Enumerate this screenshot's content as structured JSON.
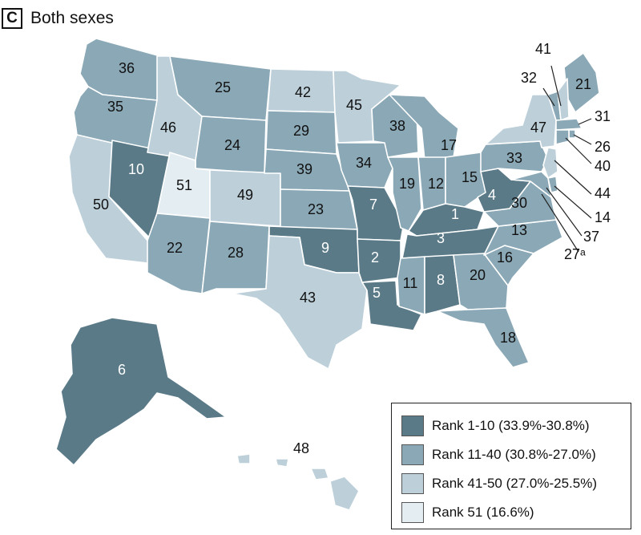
{
  "header": {
    "panel_letter": "C",
    "title": "Both sexes"
  },
  "colors": {
    "tier1": "#5a7a88",
    "tier2": "#8aa8b6",
    "tier3": "#bdd0da",
    "tier4": "#e4edf2"
  },
  "legend": [
    {
      "tier": "tier1",
      "label": "Rank 1-10 (33.9%-30.8%)"
    },
    {
      "tier": "tier2",
      "label": "Rank 11-40 (30.8%-27.0%)"
    },
    {
      "tier": "tier3",
      "label": "Rank 41-50 (27.0%-25.5%)"
    },
    {
      "tier": "tier4",
      "label": "Rank 51 (16.6%)"
    }
  ],
  "states": [
    {
      "id": "WA",
      "rank": "36",
      "tier": "tier2"
    },
    {
      "id": "OR",
      "rank": "35",
      "tier": "tier2"
    },
    {
      "id": "CA",
      "rank": "50",
      "tier": "tier3"
    },
    {
      "id": "NV",
      "rank": "10",
      "tier": "tier1"
    },
    {
      "id": "ID",
      "rank": "46",
      "tier": "tier3"
    },
    {
      "id": "MT",
      "rank": "25",
      "tier": "tier2"
    },
    {
      "id": "WY",
      "rank": "24",
      "tier": "tier2"
    },
    {
      "id": "UT",
      "rank": "51",
      "tier": "tier4"
    },
    {
      "id": "AZ",
      "rank": "22",
      "tier": "tier2"
    },
    {
      "id": "CO",
      "rank": "49",
      "tier": "tier3"
    },
    {
      "id": "NM",
      "rank": "28",
      "tier": "tier2"
    },
    {
      "id": "ND",
      "rank": "42",
      "tier": "tier3"
    },
    {
      "id": "SD",
      "rank": "29",
      "tier": "tier2"
    },
    {
      "id": "NE",
      "rank": "39",
      "tier": "tier2"
    },
    {
      "id": "KS",
      "rank": "23",
      "tier": "tier2"
    },
    {
      "id": "OK",
      "rank": "9",
      "tier": "tier1"
    },
    {
      "id": "TX",
      "rank": "43",
      "tier": "tier3"
    },
    {
      "id": "MN",
      "rank": "45",
      "tier": "tier3"
    },
    {
      "id": "IA",
      "rank": "34",
      "tier": "tier2"
    },
    {
      "id": "MO",
      "rank": "7",
      "tier": "tier1"
    },
    {
      "id": "AR",
      "rank": "2",
      "tier": "tier1"
    },
    {
      "id": "LA",
      "rank": "5",
      "tier": "tier1"
    },
    {
      "id": "WI",
      "rank": "38",
      "tier": "tier2"
    },
    {
      "id": "IL",
      "rank": "19",
      "tier": "tier2"
    },
    {
      "id": "MI",
      "rank": "17",
      "tier": "tier2"
    },
    {
      "id": "IN",
      "rank": "12",
      "tier": "tier2"
    },
    {
      "id": "OH",
      "rank": "15",
      "tier": "tier2"
    },
    {
      "id": "KY",
      "rank": "1",
      "tier": "tier1"
    },
    {
      "id": "TN",
      "rank": "3",
      "tier": "tier1"
    },
    {
      "id": "MS",
      "rank": "11",
      "tier": "tier2"
    },
    {
      "id": "AL",
      "rank": "8",
      "tier": "tier1"
    },
    {
      "id": "GA",
      "rank": "20",
      "tier": "tier2"
    },
    {
      "id": "FL",
      "rank": "18",
      "tier": "tier2"
    },
    {
      "id": "SC",
      "rank": "16",
      "tier": "tier2"
    },
    {
      "id": "NC",
      "rank": "13",
      "tier": "tier2"
    },
    {
      "id": "VA",
      "rank": "30",
      "tier": "tier2"
    },
    {
      "id": "WV",
      "rank": "4",
      "tier": "tier1"
    },
    {
      "id": "PA",
      "rank": "33",
      "tier": "tier2"
    },
    {
      "id": "NY",
      "rank": "47",
      "tier": "tier3"
    },
    {
      "id": "ME",
      "rank": "21",
      "tier": "tier2"
    },
    {
      "id": "VT",
      "rank": "32",
      "tier": "tier2"
    },
    {
      "id": "NH",
      "rank": "41",
      "tier": "tier3"
    },
    {
      "id": "MA",
      "rank": "31",
      "tier": "tier2"
    },
    {
      "id": "RI",
      "rank": "26",
      "tier": "tier2"
    },
    {
      "id": "CT",
      "rank": "40",
      "tier": "tier2"
    },
    {
      "id": "NJ",
      "rank": "44",
      "tier": "tier3"
    },
    {
      "id": "DE",
      "rank": "14",
      "tier": "tier2"
    },
    {
      "id": "MD",
      "rank": "37",
      "tier": "tier2"
    },
    {
      "id": "DC",
      "rank": "27ᵃ",
      "tier": "tier2"
    },
    {
      "id": "AK",
      "rank": "6",
      "tier": "tier1"
    },
    {
      "id": "HI",
      "rank": "48",
      "tier": "tier3"
    }
  ]
}
